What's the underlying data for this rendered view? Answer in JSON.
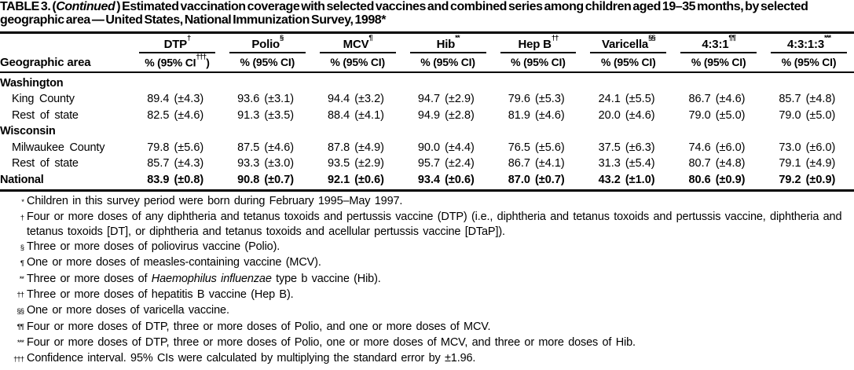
{
  "title": {
    "prefix": "TABLE 3. (",
    "continued": "Continued",
    "rest": " ) Estimated vaccination coverage with selected vaccines and combined series among children aged 19–35 months, by selected geographic area — United States, National Immunization Survey, 1998*"
  },
  "table": {
    "row_header_label": "Geographic area",
    "columns": [
      {
        "label": "DTP",
        "sup": "†",
        "ci_pre": "% (95%  CI",
        "ci_sup": "†††",
        "ci_post": ")"
      },
      {
        "label": "Polio",
        "sup": "§",
        "ci_pre": "% (95% CI)",
        "ci_sup": "",
        "ci_post": ""
      },
      {
        "label": "MCV",
        "sup": "¶",
        "ci_pre": "% (95% CI)",
        "ci_sup": "",
        "ci_post": ""
      },
      {
        "label": "Hib",
        "sup": "**",
        "ci_pre": "% (95% CI)",
        "ci_sup": "",
        "ci_post": ""
      },
      {
        "label": "Hep B",
        "sup": "††",
        "ci_pre": "% (95% CI)",
        "ci_sup": "",
        "ci_post": ""
      },
      {
        "label": "Varicella",
        "sup": "§§",
        "ci_pre": "% (95% CI)",
        "ci_sup": "",
        "ci_post": ""
      },
      {
        "label": "4:3:1",
        "sup": "¶¶",
        "ci_pre": "% (95% CI)",
        "ci_sup": "",
        "ci_post": ""
      },
      {
        "label": "4:3:1:3",
        "sup": "***",
        "ci_pre": "% (95% CI)",
        "ci_sup": "",
        "ci_post": ""
      }
    ],
    "rows": [
      {
        "type": "group",
        "label": "Washington"
      },
      {
        "type": "data",
        "label": "King County",
        "values": [
          [
            "89.4",
            "(±4.3)"
          ],
          [
            "93.6",
            "(±3.1)"
          ],
          [
            "94.4",
            "(±3.2)"
          ],
          [
            "94.7",
            "(±2.9)"
          ],
          [
            "79.6",
            "(±5.3)"
          ],
          [
            "24.1",
            "(±5.5)"
          ],
          [
            "86.7",
            "(±4.6)"
          ],
          [
            "85.7",
            "(±4.8)"
          ]
        ]
      },
      {
        "type": "data",
        "label": "Rest of state",
        "values": [
          [
            "82.5",
            "(±4.6)"
          ],
          [
            "91.3",
            "(±3.5)"
          ],
          [
            "88.4",
            "(±4.1)"
          ],
          [
            "94.9",
            "(±2.8)"
          ],
          [
            "81.9",
            "(±4.6)"
          ],
          [
            "20.0",
            "(±4.6)"
          ],
          [
            "79.0",
            "(±5.0)"
          ],
          [
            "79.0",
            "(±5.0)"
          ]
        ]
      },
      {
        "type": "group",
        "label": "Wisconsin"
      },
      {
        "type": "data",
        "label": "Milwaukee County",
        "values": [
          [
            "79.8",
            "(±5.6)"
          ],
          [
            "87.5",
            "(±4.6)"
          ],
          [
            "87.8",
            "(±4.9)"
          ],
          [
            "90.0",
            "(±4.4)"
          ],
          [
            "76.5",
            "(±5.6)"
          ],
          [
            "37.5",
            "(±6.3)"
          ],
          [
            "74.6",
            "(±6.0)"
          ],
          [
            "73.0",
            "(±6.0)"
          ]
        ]
      },
      {
        "type": "data",
        "label": "Rest of state",
        "values": [
          [
            "85.7",
            "(±4.3)"
          ],
          [
            "93.3",
            "(±3.0)"
          ],
          [
            "93.5",
            "(±2.9)"
          ],
          [
            "95.7",
            "(±2.4)"
          ],
          [
            "86.7",
            "(±4.1)"
          ],
          [
            "31.3",
            "(±5.4)"
          ],
          [
            "80.7",
            "(±4.8)"
          ],
          [
            "79.1",
            "(±4.9)"
          ]
        ]
      },
      {
        "type": "national",
        "label": "National",
        "values": [
          [
            "83.9",
            "(±0.8)"
          ],
          [
            "90.8",
            "(±0.7)"
          ],
          [
            "92.1",
            "(±0.6)"
          ],
          [
            "93.4",
            "(±0.6)"
          ],
          [
            "87.0",
            "(±0.7)"
          ],
          [
            "43.2",
            "(±1.0)"
          ],
          [
            "80.6",
            "(±0.9)"
          ],
          [
            "79.2",
            "(±0.9)"
          ]
        ]
      }
    ]
  },
  "footnotes": [
    {
      "marker": "*",
      "text": "Children in this survey period were born during February 1995–May 1997."
    },
    {
      "marker": "†",
      "text": "Four or more doses of any diphtheria and tetanus toxoids and pertussis vaccine (DTP) (i.e., diphtheria and tetanus toxoids and pertussis vaccine, diphtheria and tetanus toxoids [DT], or diphtheria and tetanus toxoids and acellular pertussis vaccine [DTaP])."
    },
    {
      "marker": "§",
      "text": "Three or more doses of poliovirus vaccine (Polio)."
    },
    {
      "marker": "¶",
      "text": "One or more doses of measles-containing vaccine (MCV)."
    },
    {
      "marker": "**",
      "text_pre": "Three or more doses of ",
      "italic": "Haemophilus influenzae",
      "text_post": " type b vaccine (Hib)."
    },
    {
      "marker": "††",
      "text": "Three or more doses of hepatitis B vaccine (Hep B)."
    },
    {
      "marker": "§§",
      "text": "One or more doses of varicella vaccine."
    },
    {
      "marker": "¶¶",
      "text": "Four or more doses of DTP, three or more doses of Polio, and one or more doses of MCV."
    },
    {
      "marker": "***",
      "text": "Four or more doses of DTP, three or more doses of Polio, one or more  doses of MCV, and three or more doses of Hib."
    },
    {
      "marker": "†††",
      "text": "Confidence interval. 95% CIs were calculated by multiplying the standard error by ±1.96."
    }
  ]
}
